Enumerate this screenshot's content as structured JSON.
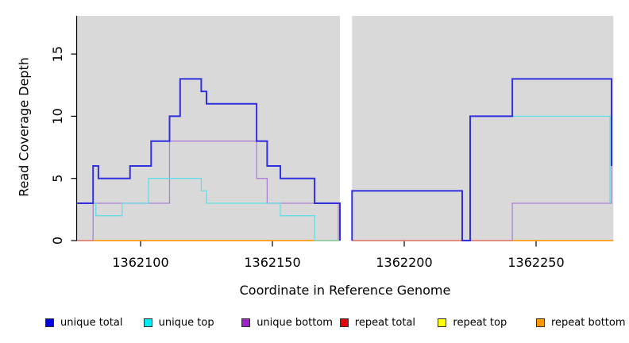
{
  "figure": {
    "xlabel": "Coordinate in Reference Genome",
    "ylabel": "Read Coverage Depth"
  },
  "chart_data": {
    "type": "line",
    "subtype": "step-coverage-plot",
    "title": "",
    "xlabel": "Coordinate in Reference Genome",
    "ylabel": "Read Coverage Depth",
    "xlim": [
      1362075.9,
      1362279.3
    ],
    "ylim": [
      0,
      18.1
    ],
    "x_ticks": [
      1362100,
      1362150,
      1362200,
      1362250
    ],
    "y_ticks": [
      0,
      5,
      10,
      15
    ],
    "grid": false,
    "plot_bg": "#d9d9d9",
    "axis_color": "#000000",
    "gap_region": [
      1362175.6,
      1362180.2
    ],
    "panel_blocks": [
      [
        1362075.9,
        1362175.6
      ],
      [
        1362180.2,
        1362279.3
      ]
    ],
    "legend_position": "bottom",
    "legend": [
      {
        "label": "unique total",
        "color": "#0000e0"
      },
      {
        "label": "unique top",
        "color": "#00eaf2"
      },
      {
        "label": "unique bottom",
        "color": "#9c22cc"
      },
      {
        "label": "repeat total",
        "color": "#e60000"
      },
      {
        "label": "repeat top",
        "color": "#ffff00"
      },
      {
        "label": "repeat bottom",
        "color": "#ff9800"
      }
    ],
    "series": [
      {
        "name": "repeat total",
        "color": "#dd2222",
        "width": 1.2,
        "segments": [
          {
            "points": [
              [
                1362075.9,
                0
              ],
              [
                1362175.6,
                0
              ]
            ]
          },
          {
            "points": [
              [
                1362180.2,
                0
              ],
              [
                1362279.3,
                0
              ]
            ]
          }
        ]
      },
      {
        "name": "repeat top",
        "color": "#ffee00",
        "width": 1.2,
        "segments": [
          {
            "points": [
              [
                1362075.9,
                0
              ],
              [
                1362175.6,
                0
              ]
            ]
          },
          {
            "points": [
              [
                1362180.2,
                0
              ],
              [
                1362279.3,
                0
              ]
            ]
          }
        ]
      },
      {
        "name": "repeat bottom",
        "color": "#ff9a10",
        "width": 1.6,
        "segments": [
          {
            "points": [
              [
                1362075.9,
                0
              ],
              [
                1362175.6,
                0
              ]
            ]
          },
          {
            "points": [
              [
                1362180.2,
                0
              ],
              [
                1362279.3,
                0
              ]
            ]
          }
        ]
      },
      {
        "name": "unique bottom",
        "color": "#b07fd6",
        "width": 1.3,
        "segments": [
          {
            "color": "#d4799f",
            "points": [
              [
                1362075.9,
                0
              ],
              [
                1362082,
                0
              ]
            ]
          },
          {
            "points": [
              [
                1362082,
                0
              ],
              [
                1362082,
                3
              ],
              [
                1362111,
                3
              ],
              [
                1362111,
                8
              ],
              [
                1362144,
                8
              ],
              [
                1362144,
                5
              ],
              [
                1362148,
                5
              ],
              [
                1362148,
                3
              ],
              [
                1362175,
                3
              ],
              [
                1362175,
                0
              ]
            ]
          },
          {
            "color": "#d4799f",
            "points": [
              [
                1362180.2,
                0
              ],
              [
                1362241,
                0
              ]
            ]
          },
          {
            "points": [
              [
                1362241,
                0
              ],
              [
                1362241,
                3
              ],
              [
                1362278.6,
                3
              ],
              [
                1362278.6,
                6
              ]
            ]
          }
        ]
      },
      {
        "name": "unique top",
        "color": "#63dde8",
        "width": 1.3,
        "segments": [
          {
            "points": [
              [
                1362075.9,
                3
              ],
              [
                1362083,
                3
              ],
              [
                1362083,
                2
              ],
              [
                1362093,
                2
              ],
              [
                1362093,
                3
              ],
              [
                1362103,
                3
              ],
              [
                1362103,
                5
              ],
              [
                1362123,
                5
              ],
              [
                1362123,
                4
              ],
              [
                1362125,
                4
              ],
              [
                1362125,
                3
              ],
              [
                1362153,
                3
              ],
              [
                1362153,
                2
              ],
              [
                1362166,
                2
              ],
              [
                1362166,
                0
              ],
              [
                1362175.6,
                0
              ]
            ]
          },
          {
            "points": [
              [
                1362225,
                0
              ],
              [
                1362225,
                10
              ],
              [
                1362278,
                10
              ],
              [
                1362278,
                3
              ]
            ]
          }
        ]
      },
      {
        "name": "unique total",
        "color": "#3030df",
        "width": 2,
        "segments": [
          {
            "points": [
              [
                1362075.9,
                3
              ],
              [
                1362082,
                3
              ],
              [
                1362082,
                6
              ],
              [
                1362084,
                6
              ],
              [
                1362084,
                5
              ],
              [
                1362096,
                5
              ],
              [
                1362096,
                6
              ],
              [
                1362104,
                6
              ],
              [
                1362104,
                8
              ],
              [
                1362111,
                8
              ],
              [
                1362111,
                10
              ],
              [
                1362115,
                10
              ],
              [
                1362115,
                13
              ],
              [
                1362123,
                13
              ],
              [
                1362123,
                12
              ],
              [
                1362125,
                12
              ],
              [
                1362125,
                11
              ],
              [
                1362144,
                11
              ],
              [
                1362144,
                8
              ],
              [
                1362148,
                8
              ],
              [
                1362148,
                6
              ],
              [
                1362153,
                6
              ],
              [
                1362153,
                5
              ],
              [
                1362166,
                5
              ],
              [
                1362166,
                3
              ],
              [
                1362175.6,
                3
              ],
              [
                1362175.6,
                0
              ]
            ]
          },
          {
            "points": [
              [
                1362180.2,
                0
              ],
              [
                1362180.2,
                4
              ],
              [
                1362222,
                4
              ],
              [
                1362222,
                0
              ],
              [
                1362225,
                0
              ],
              [
                1362225,
                10
              ],
              [
                1362241,
                10
              ],
              [
                1362241,
                13
              ],
              [
                1362278.6,
                13
              ],
              [
                1362278.6,
                6
              ]
            ]
          }
        ]
      }
    ]
  }
}
